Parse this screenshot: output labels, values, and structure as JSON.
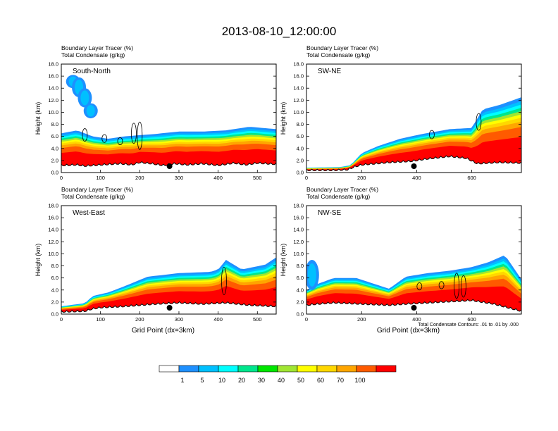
{
  "title": "2013-08-10_12:00:00",
  "contour_note": "Total Condensate Contours: .01 to .01 by .000",
  "colorbar": {
    "labels": [
      "1",
      "5",
      "10",
      "20",
      "30",
      "40",
      "50",
      "60",
      "70",
      "100"
    ],
    "colors": [
      "#ffffff",
      "#1e90ff",
      "#00c0ff",
      "#00ffff",
      "#00e68c",
      "#00e600",
      "#a0e632",
      "#ffff00",
      "#ffd700",
      "#ffa500",
      "#ff5a00",
      "#ff0000"
    ]
  },
  "chart_data": [
    {
      "type": "heatmap",
      "panel_label": "South-North",
      "title_lines": [
        "Boundary Layer Tracer   (%)",
        "Total Condensate   (g/kg)"
      ],
      "ylabel": "Height (km)",
      "xlabel": "",
      "yticks": [
        "0.0",
        "2.0",
        "4.0",
        "6.0",
        "8.0",
        "10.0",
        "12.0",
        "14.0",
        "16.0",
        "18.0"
      ],
      "ylim": [
        0,
        18
      ],
      "xlim": [
        0,
        548
      ],
      "xticks": [
        0,
        100,
        200,
        300,
        400,
        500
      ],
      "marker_x": 276,
      "terrain": [
        [
          0,
          1.1
        ],
        [
          40,
          1.2
        ],
        [
          60,
          1.0
        ],
        [
          100,
          1.2
        ],
        [
          150,
          1.4
        ],
        [
          180,
          1.2
        ],
        [
          200,
          1.6
        ],
        [
          230,
          1.4
        ],
        [
          260,
          1.1
        ],
        [
          290,
          1.4
        ],
        [
          320,
          1.2
        ],
        [
          360,
          1.4
        ],
        [
          400,
          1.1
        ],
        [
          440,
          1.5
        ],
        [
          470,
          1.2
        ],
        [
          500,
          1.5
        ],
        [
          548,
          1.3
        ]
      ],
      "bl_top": [
        [
          0,
          6.5
        ],
        [
          40,
          7.0
        ],
        [
          80,
          6.0
        ],
        [
          120,
          5.6
        ],
        [
          160,
          6.0
        ],
        [
          200,
          6.2
        ],
        [
          240,
          6.4
        ],
        [
          300,
          6.8
        ],
        [
          360,
          6.8
        ],
        [
          420,
          7.0
        ],
        [
          480,
          7.6
        ],
        [
          548,
          7.2
        ]
      ],
      "upper_cloud": [
        [
          30,
          14.0,
          16.2
        ],
        [
          45,
          12.5,
          15.8
        ],
        [
          60,
          10.8,
          14.0
        ],
        [
          75,
          9.0,
          11.5
        ]
      ],
      "contours": [
        [
          60,
          5.2,
          7.3
        ],
        [
          110,
          5.0,
          6.3
        ],
        [
          185,
          4.8,
          8.2
        ],
        [
          200,
          3.8,
          8.4
        ],
        [
          150,
          4.6,
          5.8
        ]
      ]
    },
    {
      "type": "heatmap",
      "panel_label": "SW-NE",
      "title_lines": [
        "Boundary Layer Tracer   (%)",
        "Total Condensate   (g/kg)"
      ],
      "ylabel": "Height (km)",
      "xlabel": "",
      "yticks": [
        "0.0",
        "2.0",
        "4.0",
        "6.0",
        "8.0",
        "10.0",
        "12.0",
        "14.0",
        "16.0",
        "18.0"
      ],
      "ylim": [
        0,
        18
      ],
      "xlim": [
        0,
        780
      ],
      "xticks": [
        0,
        200,
        400,
        600
      ],
      "marker_x": 390,
      "terrain": [
        [
          0,
          0.3
        ],
        [
          100,
          0.3
        ],
        [
          150,
          0.4
        ],
        [
          170,
          0.8
        ],
        [
          200,
          1.2
        ],
        [
          300,
          1.6
        ],
        [
          380,
          1.8
        ],
        [
          440,
          2.2
        ],
        [
          520,
          2.6
        ],
        [
          580,
          2.3
        ],
        [
          620,
          1.4
        ],
        [
          700,
          1.6
        ],
        [
          780,
          1.5
        ]
      ],
      "bl_top": [
        [
          0,
          0.8
        ],
        [
          120,
          0.9
        ],
        [
          160,
          1.2
        ],
        [
          200,
          3.2
        ],
        [
          260,
          4.4
        ],
        [
          340,
          5.6
        ],
        [
          420,
          6.4
        ],
        [
          520,
          7.2
        ],
        [
          600,
          7.4
        ],
        [
          640,
          10.5
        ],
        [
          700,
          11.2
        ],
        [
          780,
          12.5
        ]
      ],
      "upper_cloud": [],
      "contours": [
        [
          625,
          7.0,
          9.8
        ],
        [
          455,
          5.6,
          7.0
        ]
      ]
    },
    {
      "type": "heatmap",
      "panel_label": "West-East",
      "title_lines": [
        "Boundary Layer Tracer   (%)",
        "Total Condensate   (g/kg)"
      ],
      "ylabel": "Height (km)",
      "xlabel": "Grid Point (dx=3km)",
      "yticks": [
        "0.0",
        "2.0",
        "4.0",
        "6.0",
        "8.0",
        "10.0",
        "12.0",
        "14.0",
        "16.0",
        "18.0"
      ],
      "ylim": [
        0,
        18
      ],
      "xlim": [
        0,
        548
      ],
      "xticks": [
        0,
        100,
        200,
        300,
        400,
        500
      ],
      "marker_x": 276,
      "terrain": [
        [
          0,
          0.3
        ],
        [
          60,
          0.4
        ],
        [
          80,
          0.8
        ],
        [
          100,
          1.0
        ],
        [
          160,
          1.2
        ],
        [
          240,
          1.6
        ],
        [
          300,
          1.8
        ],
        [
          360,
          1.6
        ],
        [
          420,
          1.8
        ],
        [
          480,
          1.4
        ],
        [
          548,
          1.2
        ]
      ],
      "bl_top": [
        [
          0,
          1.3
        ],
        [
          60,
          1.8
        ],
        [
          80,
          3.0
        ],
        [
          120,
          3.6
        ],
        [
          160,
          4.6
        ],
        [
          220,
          6.2
        ],
        [
          300,
          6.8
        ],
        [
          380,
          7.0
        ],
        [
          400,
          7.4
        ],
        [
          420,
          9.0
        ],
        [
          460,
          7.4
        ],
        [
          520,
          8.2
        ],
        [
          548,
          9.4
        ]
      ],
      "upper_cloud": [],
      "contours": [
        [
          415,
          3.2,
          7.8
        ]
      ]
    },
    {
      "type": "heatmap",
      "panel_label": "NW-SE",
      "title_lines": [
        "Boundary Layer Tracer   (%)",
        "Total Condensate   (g/kg)"
      ],
      "ylabel": "Height (km)",
      "xlabel": "Grid Point (dx=3km)",
      "yticks": [
        "0.0",
        "2.0",
        "4.0",
        "6.0",
        "8.0",
        "10.0",
        "12.0",
        "14.0",
        "16.0",
        "18.0"
      ],
      "ylim": [
        0,
        18
      ],
      "xlim": [
        0,
        780
      ],
      "xticks": [
        0,
        200,
        400,
        600
      ],
      "marker_x": 390,
      "terrain": [
        [
          0,
          1.4
        ],
        [
          40,
          1.6
        ],
        [
          100,
          1.8
        ],
        [
          200,
          1.6
        ],
        [
          300,
          1.4
        ],
        [
          360,
          1.6
        ],
        [
          440,
          1.8
        ],
        [
          520,
          2.0
        ],
        [
          600,
          2.2
        ],
        [
          680,
          1.6
        ],
        [
          780,
          0.4
        ]
      ],
      "bl_top": [
        [
          0,
          4.0
        ],
        [
          40,
          5.0
        ],
        [
          100,
          6.0
        ],
        [
          180,
          6.0
        ],
        [
          260,
          4.8
        ],
        [
          300,
          4.2
        ],
        [
          360,
          6.2
        ],
        [
          440,
          6.8
        ],
        [
          520,
          7.2
        ],
        [
          600,
          7.8
        ],
        [
          660,
          8.6
        ],
        [
          720,
          9.8
        ],
        [
          780,
          5.8
        ]
      ],
      "upper_cloud": [
        [
          20,
          4.0,
          9.0
        ]
      ],
      "contours": [
        [
          545,
          2.6,
          6.8
        ],
        [
          570,
          2.8,
          6.4
        ],
        [
          410,
          4.0,
          5.2
        ],
        [
          490,
          4.2,
          5.4
        ]
      ]
    }
  ]
}
